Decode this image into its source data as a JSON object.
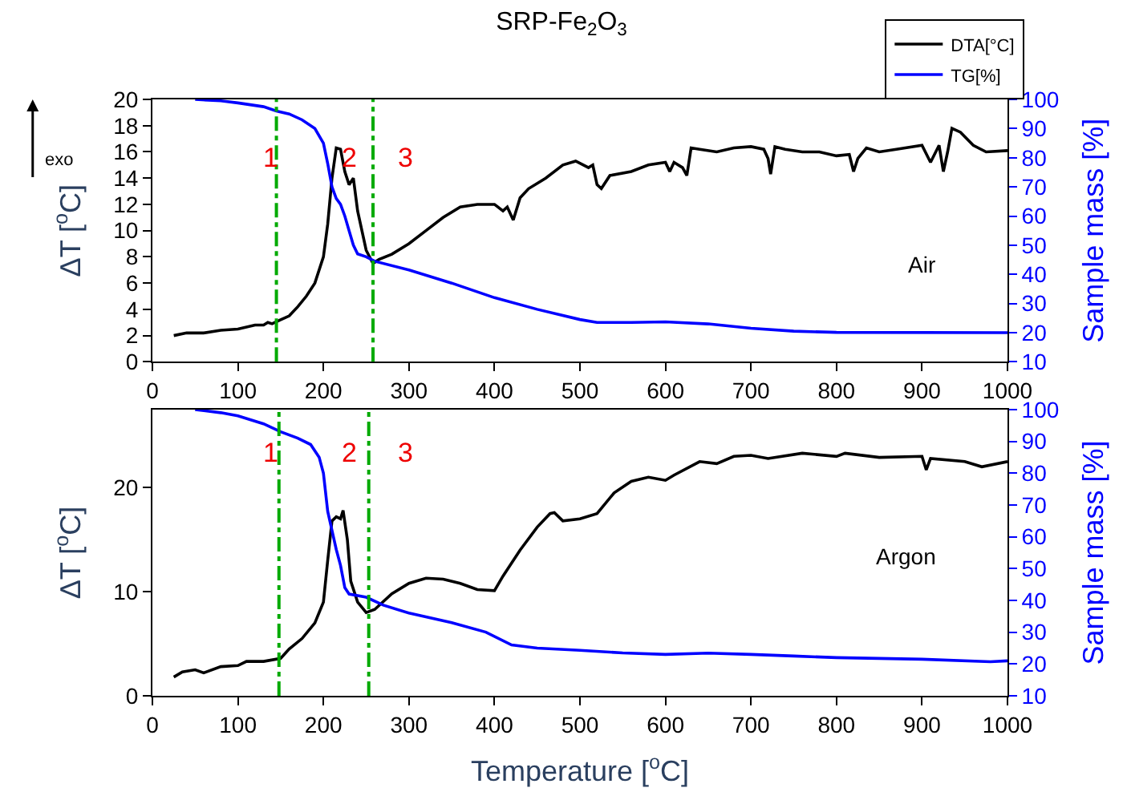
{
  "chart_data": [
    {
      "type": "line",
      "title": "SRP-Fe$_{2}$O$_{3}$",
      "ylabel": "ΔT [$^{o}$C]",
      "y2label": "Sample mass [%]",
      "xlim": [
        0,
        1000
      ],
      "xticks": [
        0,
        100,
        200,
        300,
        400,
        500,
        600,
        700,
        800,
        900,
        1000
      ],
      "ylim": [
        0,
        20
      ],
      "yticks": [
        0,
        2,
        4,
        6,
        8,
        10,
        12,
        14,
        16,
        18,
        20
      ],
      "y2lim": [
        10,
        100
      ],
      "y2ticks": [
        10,
        20,
        30,
        40,
        50,
        60,
        70,
        80,
        90,
        100
      ],
      "legend": "top right",
      "marker": "none",
      "line_style": "solid",
      "series": [
        {
          "name": "DTA[°C]",
          "color": "#000000",
          "x": [
            25,
            40,
            60,
            80,
            100,
            120,
            130,
            135,
            140,
            150,
            160,
            170,
            180,
            190,
            200,
            205,
            210,
            215,
            220,
            225,
            230,
            235,
            240,
            250,
            258,
            265,
            280,
            300,
            320,
            340,
            360,
            380,
            400,
            410,
            415,
            422,
            430,
            440,
            460,
            480,
            495,
            510,
            515,
            520,
            525,
            535,
            560,
            580,
            600,
            605,
            610,
            620,
            625,
            630,
            640,
            660,
            680,
            700,
            715,
            720,
            723,
            728,
            740,
            760,
            780,
            800,
            815,
            820,
            825,
            835,
            850,
            870,
            900,
            910,
            920,
            925,
            930,
            935,
            945,
            960,
            975,
            1000
          ],
          "values": [
            2.0,
            2.2,
            2.2,
            2.4,
            2.5,
            2.8,
            2.8,
            3.0,
            2.9,
            3.2,
            3.5,
            4.2,
            5.0,
            6.0,
            8.0,
            10.5,
            14,
            16.3,
            16.2,
            14.5,
            13.5,
            14,
            11.5,
            8.5,
            7.5,
            7.8,
            8.2,
            9.0,
            10.0,
            11.0,
            11.8,
            12.0,
            12.0,
            11.5,
            11.8,
            10.8,
            12.5,
            13.2,
            14.0,
            15.0,
            15.3,
            14.8,
            15.0,
            13.5,
            13.2,
            14.2,
            14.5,
            15.0,
            15.2,
            14.5,
            15.2,
            14.8,
            14.2,
            16.3,
            16.2,
            16.0,
            16.3,
            16.4,
            16.2,
            15.5,
            14.3,
            16.4,
            16.2,
            16.0,
            16.0,
            15.7,
            15.8,
            14.5,
            15.5,
            16.3,
            16.0,
            16.2,
            16.5,
            15.2,
            16.5,
            14.5,
            16.0,
            17.8,
            17.5,
            16.5,
            16.0,
            16.1
          ]
        },
        {
          "name": "TG[%]",
          "color": "#0000ff",
          "axis": "y2",
          "x": [
            50,
            80,
            100,
            130,
            145,
            160,
            175,
            190,
            200,
            205,
            210,
            215,
            220,
            225,
            230,
            235,
            240,
            250,
            260,
            300,
            350,
            400,
            450,
            500,
            520,
            560,
            600,
            650,
            700,
            750,
            800,
            1000
          ],
          "values": [
            100,
            99.5,
            98.8,
            97.5,
            96,
            95,
            93,
            90,
            85,
            78,
            70,
            66,
            64,
            60,
            55,
            50,
            47,
            46,
            44.5,
            41.5,
            37,
            32,
            28,
            24.5,
            23.5,
            23.5,
            23.7,
            23,
            21.5,
            20.5,
            20.1,
            20
          ]
        }
      ],
      "ref_lines": [
        {
          "axis": "x",
          "value": 145,
          "color": "#00aa00",
          "line_style": "dashdot"
        },
        {
          "axis": "x",
          "value": 258,
          "color": "#00aa00",
          "line_style": "dashdot"
        }
      ],
      "annotations": [
        "exo",
        "1",
        "2",
        "3",
        "Air"
      ]
    },
    {
      "type": "line",
      "xlabel": "Temperature [$^{o}$C]",
      "ylabel": "ΔT [$^{o}$C]",
      "y2label": "Sample mass [%]",
      "xlim": [
        0,
        1000
      ],
      "xticks": [
        0,
        100,
        200,
        300,
        400,
        500,
        600,
        700,
        800,
        900,
        1000
      ],
      "ylim": [
        0,
        27.5
      ],
      "yticks": [
        0,
        10,
        20
      ],
      "y2lim": [
        10,
        100
      ],
      "y2ticks": [
        10,
        20,
        30,
        40,
        50,
        60,
        70,
        80,
        90,
        100
      ],
      "marker": "none",
      "line_style": "solid",
      "series": [
        {
          "color": "#000000",
          "x": [
            25,
            35,
            50,
            60,
            80,
            100,
            110,
            130,
            150,
            160,
            175,
            190,
            200,
            205,
            210,
            215,
            220,
            223,
            228,
            232,
            240,
            250,
            260,
            280,
            300,
            320,
            340,
            360,
            380,
            400,
            410,
            430,
            450,
            465,
            470,
            480,
            500,
            520,
            540,
            560,
            580,
            600,
            610,
            640,
            660,
            680,
            700,
            720,
            760,
            800,
            810,
            850,
            900,
            905,
            910,
            950,
            970,
            1000
          ],
          "values": [
            1.8,
            2.3,
            2.5,
            2.2,
            2.8,
            2.9,
            3.3,
            3.3,
            3.6,
            4.5,
            5.5,
            7.0,
            9.0,
            13,
            16.8,
            17.2,
            17.0,
            17.8,
            15,
            11,
            9.0,
            8.0,
            8.3,
            9.8,
            10.8,
            11.3,
            11.2,
            10.8,
            10.2,
            10.1,
            11.5,
            14,
            16.2,
            17.5,
            17.6,
            16.8,
            17.0,
            17.5,
            19.5,
            20.6,
            21.0,
            20.7,
            21.2,
            22.5,
            22.3,
            23.0,
            23.1,
            22.8,
            23.3,
            23.0,
            23.3,
            22.9,
            23.0,
            21.7,
            22.8,
            22.5,
            22.0,
            22.5
          ]
        },
        {
          "color": "#0000ff",
          "axis": "y2",
          "x": [
            50,
            80,
            100,
            130,
            150,
            170,
            185,
            195,
            200,
            205,
            210,
            215,
            220,
            225,
            230,
            250,
            270,
            300,
            350,
            390,
            420,
            450,
            500,
            550,
            600,
            650,
            700,
            750,
            800,
            900,
            980,
            1000
          ],
          "values": [
            100,
            99,
            98,
            95.5,
            93,
            91,
            89,
            85,
            80,
            68,
            62,
            56,
            51,
            44,
            42,
            41,
            38.5,
            36,
            33,
            30,
            26,
            25,
            24.3,
            23.5,
            23,
            23.4,
            23,
            22.5,
            22,
            21.5,
            20.7,
            21
          ]
        }
      ],
      "ref_lines": [
        {
          "axis": "x",
          "value": 148,
          "color": "#00aa00",
          "line_style": "dashdot"
        },
        {
          "axis": "x",
          "value": 253,
          "color": "#00aa00",
          "line_style": "dashdot"
        }
      ],
      "annotations": [
        "1",
        "2",
        "3",
        "Argon"
      ]
    }
  ]
}
